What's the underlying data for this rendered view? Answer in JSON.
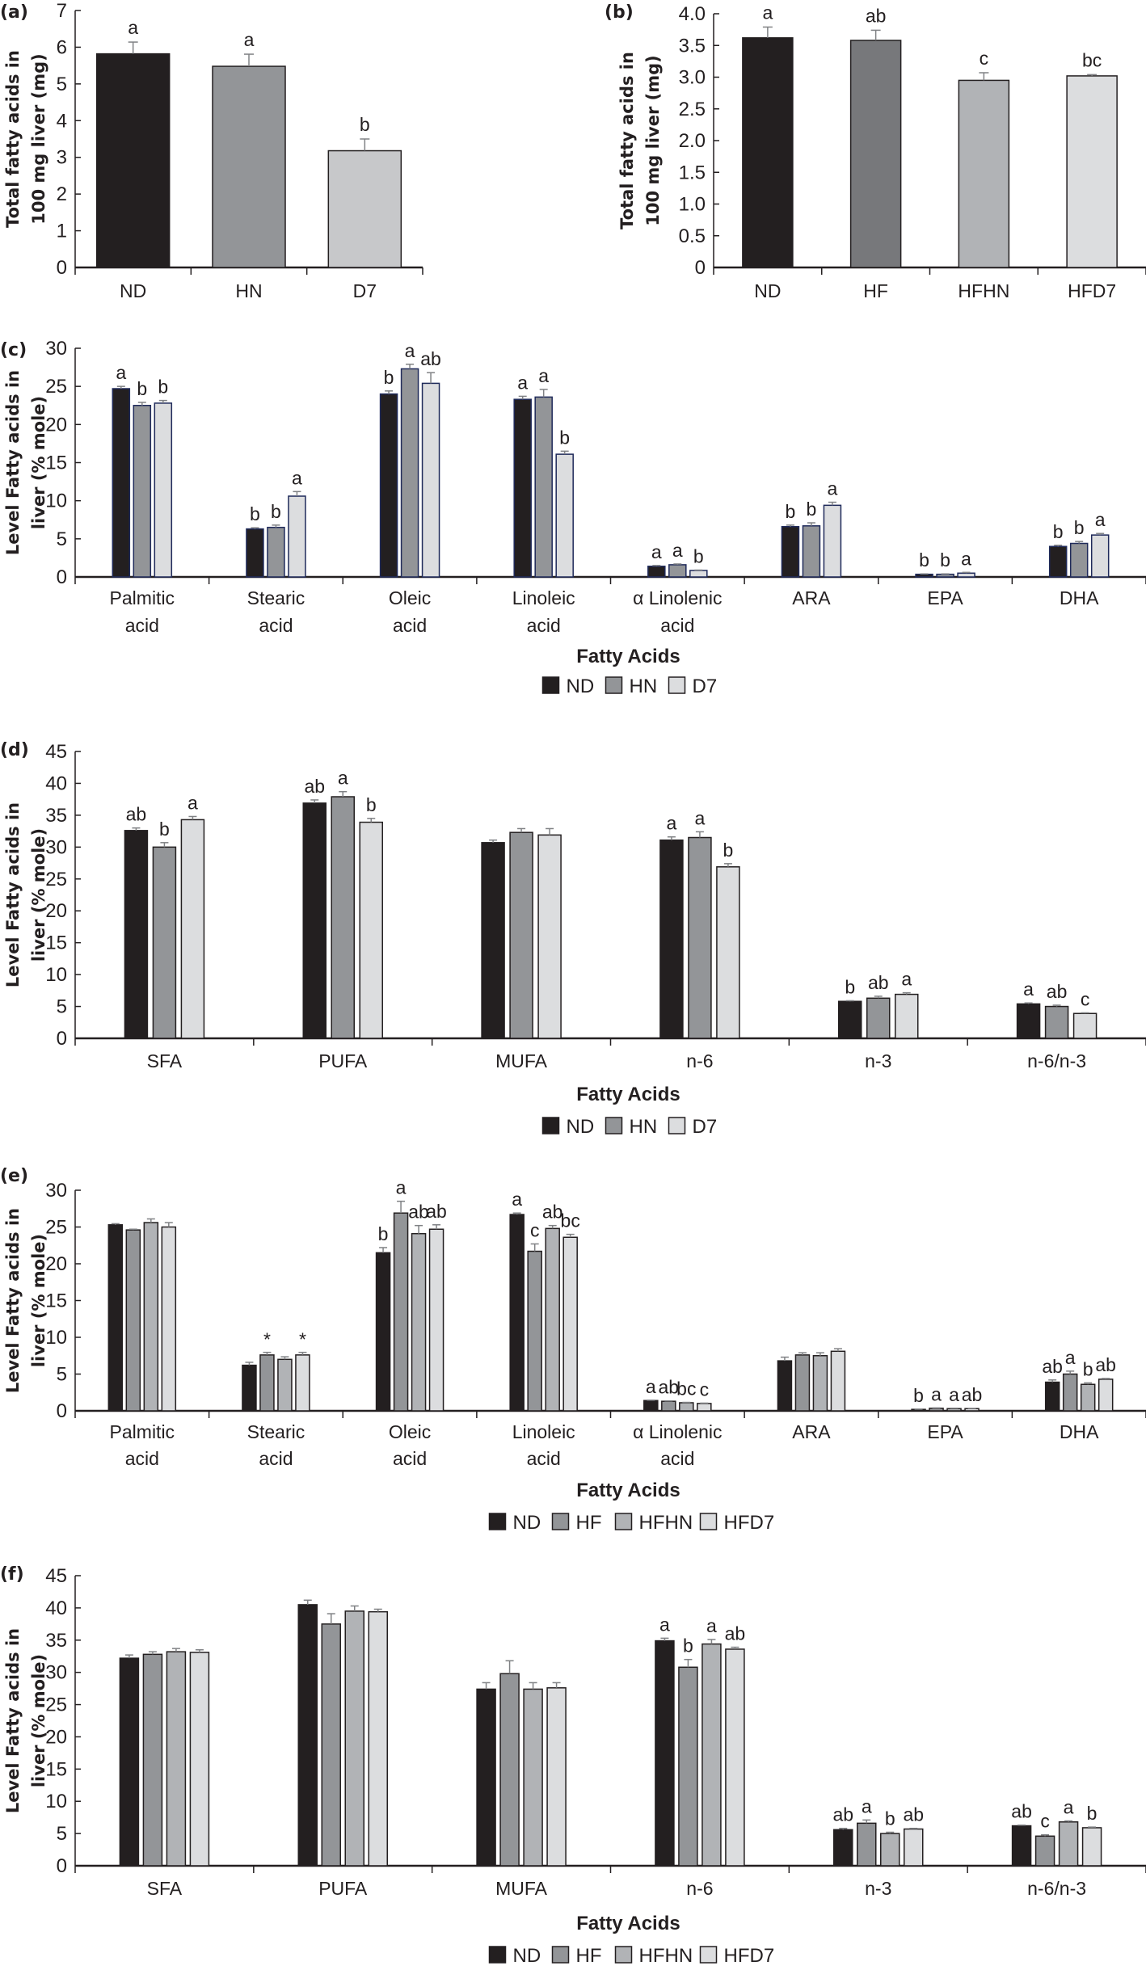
{
  "chart_data": [
    {
      "id": "a",
      "panel_label": "(a)",
      "type": "bar",
      "title": "",
      "ylabel": [
        "Total fatty acids in",
        "100 mg liver (mg)"
      ],
      "xlabel": "",
      "ylim": [
        0,
        7
      ],
      "yticks": [
        0,
        1,
        2,
        3,
        4,
        5,
        6,
        7
      ],
      "ytick_labels": [
        "0",
        "1",
        "2",
        "3",
        "4",
        "5",
        "6",
        "7"
      ],
      "categories": [
        "ND",
        "HN",
        "D7"
      ],
      "values": [
        5.82,
        5.48,
        3.18
      ],
      "errors": [
        0.32,
        0.33,
        0.32
      ],
      "significance": [
        "a",
        "a",
        "b"
      ],
      "colors": [
        "#231f20",
        "#939598",
        "#c7c8ca"
      ],
      "grid": false,
      "legend": null
    },
    {
      "id": "b",
      "panel_label": "(b)",
      "type": "bar",
      "title": "",
      "ylabel": [
        "Total fatty acids in",
        "100 mg liver (mg)"
      ],
      "xlabel": "",
      "ylim": [
        0,
        4
      ],
      "yticks": [
        0,
        0.5,
        1,
        1.5,
        2,
        2.5,
        3,
        3.5,
        4
      ],
      "ytick_labels": [
        "0",
        "0.5",
        "1.0",
        "1.5",
        "2.0",
        "2.5",
        "3.0",
        "3.5",
        "4.0"
      ],
      "categories": [
        "ND",
        "HF",
        "HFHN",
        "HFD7"
      ],
      "values": [
        3.62,
        3.58,
        2.95,
        3.02
      ],
      "errors": [
        0.17,
        0.16,
        0.12,
        0.02
      ],
      "significance": [
        "a",
        "ab",
        "c",
        "bc"
      ],
      "colors": [
        "#231f20",
        "#77787b",
        "#b1b3b6",
        "#dcdddf"
      ],
      "grid": false,
      "legend": null
    },
    {
      "id": "c",
      "panel_label": "(c)",
      "type": "bar",
      "title": "",
      "ylabel": [
        "Level Fatty acids in",
        "liver (% mole)"
      ],
      "xlabel": "Fatty Acids",
      "ylim": [
        0,
        30
      ],
      "yticks": [
        0,
        5,
        10,
        15,
        20,
        25,
        30
      ],
      "ytick_labels": [
        "0",
        "5",
        "10",
        "15",
        "20",
        "25",
        "30"
      ],
      "categories": [
        [
          "Palmitic",
          "acid"
        ],
        [
          "Stearic",
          "acid"
        ],
        [
          "Oleic",
          "acid"
        ],
        [
          "Linoleic",
          "acid"
        ],
        [
          "α Linolenic",
          "acid"
        ],
        [
          "ARA"
        ],
        [
          "EPA"
        ],
        [
          "DHA"
        ]
      ],
      "series": [
        {
          "name": "ND",
          "color": "#231f20",
          "values": [
            24.7,
            6.3,
            24.0,
            23.3,
            1.4,
            6.6,
            0.35,
            4.0
          ],
          "errors": [
            0.3,
            0.15,
            0.4,
            0.4,
            0.1,
            0.2,
            0.05,
            0.15
          ],
          "significance": [
            "a",
            "b",
            "b",
            "a",
            "a",
            "b",
            "b",
            "b"
          ]
        },
        {
          "name": "HN",
          "color": "#939598",
          "values": [
            22.5,
            6.5,
            27.3,
            23.6,
            1.6,
            6.7,
            0.35,
            4.4
          ],
          "errors": [
            0.4,
            0.3,
            0.6,
            1.0,
            0.1,
            0.4,
            0.05,
            0.25
          ],
          "significance": [
            "b",
            "b",
            "a",
            "a",
            "a",
            "b",
            "b",
            "b"
          ]
        },
        {
          "name": "D7",
          "color": "#dcdddf",
          "values": [
            22.8,
            10.6,
            25.4,
            16.1,
            0.85,
            9.4,
            0.5,
            5.5
          ],
          "errors": [
            0.35,
            0.6,
            1.4,
            0.4,
            0.05,
            0.4,
            0.1,
            0.2
          ],
          "significance": [
            "b",
            "a",
            "ab",
            "b",
            "b",
            "a",
            "a",
            "a"
          ]
        }
      ],
      "bar_stroke": "#1f2a5a",
      "grid": false,
      "legend": "bottom-center"
    },
    {
      "id": "d",
      "panel_label": "(d)",
      "type": "bar",
      "title": "",
      "ylabel": [
        "Level Fatty acids in",
        "liver (% mole)"
      ],
      "xlabel": "Fatty Acids",
      "ylim": [
        0,
        45
      ],
      "yticks": [
        0,
        5,
        10,
        15,
        20,
        25,
        30,
        35,
        40,
        45
      ],
      "ytick_labels": [
        "0",
        "5",
        "10",
        "15",
        "20",
        "25",
        "30",
        "35",
        "40",
        "45"
      ],
      "categories": [
        [
          "SFA"
        ],
        [
          "PUFA"
        ],
        [
          "MUFA"
        ],
        [
          "n-6"
        ],
        [
          "n-3"
        ],
        [
          "n-6/n-3"
        ]
      ],
      "series": [
        {
          "name": "ND",
          "color": "#231f20",
          "values": [
            32.6,
            36.9,
            30.7,
            31.1,
            5.8,
            5.4
          ],
          "errors": [
            0.4,
            0.5,
            0.4,
            0.5,
            0.1,
            0.15
          ],
          "significance": [
            "ab",
            "ab",
            "",
            "a",
            "b",
            "a"
          ]
        },
        {
          "name": "HN",
          "color": "#939598",
          "values": [
            30.0,
            37.9,
            32.3,
            31.5,
            6.3,
            5.0
          ],
          "errors": [
            0.7,
            0.8,
            0.6,
            0.9,
            0.3,
            0.2
          ],
          "significance": [
            "b",
            "a",
            "",
            "a",
            "ab",
            "ab"
          ]
        },
        {
          "name": "D7",
          "color": "#dcdddf",
          "values": [
            34.3,
            33.9,
            31.9,
            26.9,
            6.9,
            3.9
          ],
          "errors": [
            0.5,
            0.6,
            1.0,
            0.5,
            0.25,
            0.1
          ],
          "significance": [
            "a",
            "b",
            "",
            "b",
            "a",
            "c"
          ]
        }
      ],
      "bar_stroke": "#231f20",
      "grid": false,
      "legend": "bottom-center"
    },
    {
      "id": "e",
      "panel_label": "(e)",
      "type": "bar",
      "title": "",
      "ylabel": [
        "Level Fatty acids in",
        "liver (% mole)"
      ],
      "xlabel": "Fatty Acids",
      "ylim": [
        0,
        30
      ],
      "yticks": [
        0,
        5,
        10,
        15,
        20,
        25,
        30
      ],
      "ytick_labels": [
        "0",
        "5",
        "10",
        "15",
        "20",
        "25",
        "30"
      ],
      "categories": [
        [
          "Palmitic",
          "acid"
        ],
        [
          "Stearic",
          "acid"
        ],
        [
          "Oleic",
          "acid"
        ],
        [
          "Linoleic",
          "acid"
        ],
        [
          "α Linolenic",
          "acid"
        ],
        [
          "ARA"
        ],
        [
          "EPA"
        ],
        [
          "DHA"
        ]
      ],
      "series": [
        {
          "name": "ND",
          "color": "#231f20",
          "values": [
            25.3,
            6.2,
            21.5,
            26.7,
            1.4,
            6.8,
            0.2,
            3.9
          ],
          "errors": [
            0.15,
            0.4,
            0.7,
            0.2,
            0.05,
            0.5,
            0.03,
            0.3
          ],
          "significance": [
            "",
            "",
            "b",
            "a",
            "a",
            "",
            "b",
            "ab"
          ]
        },
        {
          "name": "HF",
          "color": "#939598",
          "values": [
            24.6,
            7.6,
            26.9,
            21.7,
            1.3,
            7.6,
            0.35,
            5.0
          ],
          "errors": [
            0.1,
            0.35,
            1.6,
            1.0,
            0.05,
            0.3,
            0.05,
            0.4
          ],
          "significance": [
            "",
            "*",
            "a",
            "c",
            "ab",
            "",
            "a",
            "a"
          ]
        },
        {
          "name": "HFHN",
          "color": "#b1b3b6",
          "values": [
            25.6,
            7.0,
            24.1,
            24.8,
            1.1,
            7.5,
            0.3,
            3.6
          ],
          "errors": [
            0.5,
            0.35,
            1.1,
            0.4,
            0.05,
            0.4,
            0.05,
            0.2
          ],
          "significance": [
            "",
            "",
            "ab",
            "ab",
            "bc",
            "",
            "a",
            "b"
          ]
        },
        {
          "name": "HFD7",
          "color": "#dcdddf",
          "values": [
            25.0,
            7.6,
            24.7,
            23.6,
            1.0,
            8.1,
            0.3,
            4.3
          ],
          "errors": [
            0.6,
            0.35,
            0.6,
            0.4,
            0.05,
            0.35,
            0.03,
            0.1
          ],
          "significance": [
            "",
            "*",
            "ab",
            "bc",
            "c",
            "",
            "ab",
            "ab"
          ]
        }
      ],
      "bar_stroke": "#231f20",
      "grid": false,
      "legend": "bottom-center"
    },
    {
      "id": "f",
      "panel_label": "(f)",
      "type": "bar",
      "title": "",
      "ylabel": [
        "Level Fatty acids in",
        "liver (% mole)"
      ],
      "xlabel": "Fatty Acids",
      "ylim": [
        0,
        45
      ],
      "yticks": [
        0,
        5,
        10,
        15,
        20,
        25,
        30,
        35,
        40,
        45
      ],
      "ytick_labels": [
        "0",
        "5",
        "10",
        "15",
        "20",
        "25",
        "30",
        "35",
        "40",
        "45"
      ],
      "categories": [
        [
          "SFA"
        ],
        [
          "PUFA"
        ],
        [
          "MUFA"
        ],
        [
          "n-6"
        ],
        [
          "n-3"
        ],
        [
          "n-6/n-3"
        ]
      ],
      "series": [
        {
          "name": "ND",
          "color": "#231f20",
          "values": [
            32.2,
            40.5,
            27.4,
            34.9,
            5.6,
            6.2
          ],
          "errors": [
            0.5,
            0.7,
            1.0,
            0.4,
            0.2,
            0.1
          ],
          "significance": [
            "",
            "",
            "",
            "a",
            "ab",
            "ab"
          ]
        },
        {
          "name": "HF",
          "color": "#939598",
          "values": [
            32.8,
            37.5,
            29.8,
            30.8,
            6.6,
            4.6
          ],
          "errors": [
            0.4,
            1.6,
            2.0,
            1.2,
            0.5,
            0.2
          ],
          "significance": [
            "",
            "",
            "",
            "b",
            "a",
            "c"
          ]
        },
        {
          "name": "HFHN",
          "color": "#b1b3b6",
          "values": [
            33.2,
            39.5,
            27.4,
            34.4,
            5.0,
            6.8
          ],
          "errors": [
            0.5,
            0.8,
            1.0,
            0.7,
            0.2,
            0.15
          ],
          "significance": [
            "",
            "",
            "",
            "a",
            "b",
            "a"
          ]
        },
        {
          "name": "HFD7",
          "color": "#dcdddf",
          "values": [
            33.1,
            39.4,
            27.6,
            33.6,
            5.7,
            5.9
          ],
          "errors": [
            0.4,
            0.4,
            0.8,
            0.3,
            0.1,
            0.1
          ],
          "significance": [
            "",
            "",
            "",
            "ab",
            "ab",
            "b"
          ]
        }
      ],
      "bar_stroke": "#231f20",
      "grid": false,
      "legend": "bottom-center"
    }
  ],
  "error_bar_color": "#808285"
}
